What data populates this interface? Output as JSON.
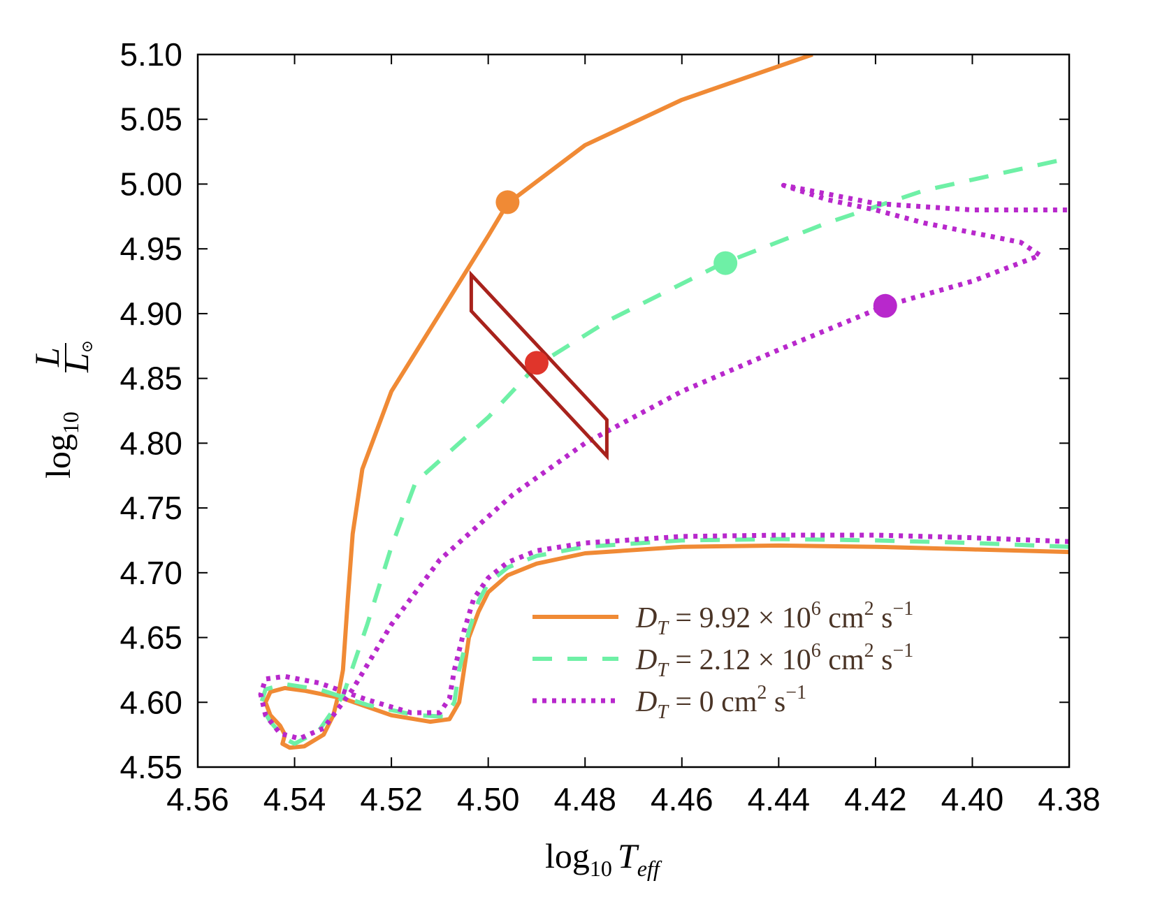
{
  "chart_data": {
    "type": "line",
    "title": "",
    "xlabel": "log10 Teff",
    "ylabel": "log10 L/L⊙",
    "xlim": [
      4.56,
      4.38
    ],
    "ylim": [
      4.55,
      5.1
    ],
    "x_reversed": true,
    "xticks": [
      "4.56",
      "4.54",
      "4.52",
      "4.50",
      "4.48",
      "4.46",
      "4.44",
      "4.42",
      "4.40",
      "4.38"
    ],
    "yticks": [
      "4.55",
      "4.60",
      "4.65",
      "4.70",
      "4.75",
      "4.80",
      "4.85",
      "4.90",
      "4.95",
      "5.00",
      "5.05",
      "5.10"
    ],
    "grid": false,
    "legend_position": "lower-right",
    "series": [
      {
        "name": "D_T = 9.92 × 10^6 cm^2 s^-1",
        "style": "solid",
        "color": "#f08a35",
        "points": [
          [
            4.38,
            4.716
          ],
          [
            4.4,
            4.718
          ],
          [
            4.42,
            4.72
          ],
          [
            4.44,
            4.721
          ],
          [
            4.46,
            4.72
          ],
          [
            4.48,
            4.715
          ],
          [
            4.49,
            4.707
          ],
          [
            4.496,
            4.698
          ],
          [
            4.5,
            4.685
          ],
          [
            4.502,
            4.67
          ],
          [
            4.504,
            4.65
          ],
          [
            4.505,
            4.625
          ],
          [
            4.506,
            4.6
          ],
          [
            4.508,
            4.587
          ],
          [
            4.512,
            4.585
          ],
          [
            4.52,
            4.59
          ],
          [
            4.53,
            4.603
          ],
          [
            4.538,
            4.609
          ],
          [
            4.542,
            4.611
          ],
          [
            4.545,
            4.608
          ],
          [
            4.546,
            4.6
          ],
          [
            4.545,
            4.59
          ],
          [
            4.543,
            4.582
          ],
          [
            4.542,
            4.575
          ],
          [
            4.5425,
            4.568
          ],
          [
            4.541,
            4.565
          ],
          [
            4.538,
            4.566
          ],
          [
            4.534,
            4.575
          ],
          [
            4.532,
            4.59
          ],
          [
            4.531,
            4.605
          ],
          [
            4.53,
            4.625
          ],
          [
            4.529,
            4.68
          ],
          [
            4.528,
            4.73
          ],
          [
            4.526,
            4.78
          ],
          [
            4.52,
            4.84
          ],
          [
            4.51,
            4.9
          ],
          [
            4.5,
            4.96
          ],
          [
            4.496,
            4.985
          ],
          [
            4.48,
            5.03
          ],
          [
            4.46,
            5.065
          ],
          [
            4.433,
            5.1
          ]
        ]
      },
      {
        "name": "D_T = 2.12 × 10^6 cm^2 s^-1",
        "style": "dashed",
        "color": "#6ef0a6",
        "points": [
          [
            4.38,
            4.72
          ],
          [
            4.4,
            4.723
          ],
          [
            4.42,
            4.725
          ],
          [
            4.44,
            4.726
          ],
          [
            4.46,
            4.725
          ],
          [
            4.48,
            4.72
          ],
          [
            4.49,
            4.713
          ],
          [
            4.496,
            4.704
          ],
          [
            4.5,
            4.692
          ],
          [
            4.502,
            4.678
          ],
          [
            4.504,
            4.655
          ],
          [
            4.506,
            4.625
          ],
          [
            4.507,
            4.6
          ],
          [
            4.509,
            4.589
          ],
          [
            4.515,
            4.59
          ],
          [
            4.525,
            4.598
          ],
          [
            4.535,
            4.61
          ],
          [
            4.542,
            4.614
          ],
          [
            4.546,
            4.61
          ],
          [
            4.547,
            4.598
          ],
          [
            4.545,
            4.585
          ],
          [
            4.542,
            4.572
          ],
          [
            4.54,
            4.568
          ],
          [
            4.535,
            4.578
          ],
          [
            4.53,
            4.605
          ],
          [
            4.525,
            4.66
          ],
          [
            4.52,
            4.72
          ],
          [
            4.515,
            4.77
          ],
          [
            4.5,
            4.82
          ],
          [
            4.49,
            4.86
          ],
          [
            4.475,
            4.895
          ],
          [
            4.452,
            4.938
          ],
          [
            4.43,
            4.97
          ],
          [
            4.41,
            4.995
          ],
          [
            4.38,
            5.02
          ]
        ]
      },
      {
        "name": "D_T = 0 cm^2 s^-1",
        "style": "dotted",
        "color": "#b828cc",
        "points": [
          [
            4.38,
            4.724
          ],
          [
            4.4,
            4.727
          ],
          [
            4.42,
            4.729
          ],
          [
            4.44,
            4.729
          ],
          [
            4.46,
            4.728
          ],
          [
            4.48,
            4.723
          ],
          [
            4.49,
            4.717
          ],
          [
            4.496,
            4.708
          ],
          [
            4.5,
            4.696
          ],
          [
            4.503,
            4.68
          ],
          [
            4.505,
            4.655
          ],
          [
            4.507,
            4.625
          ],
          [
            4.508,
            4.603
          ],
          [
            4.51,
            4.592
          ],
          [
            4.516,
            4.592
          ],
          [
            4.525,
            4.602
          ],
          [
            4.535,
            4.615
          ],
          [
            4.542,
            4.62
          ],
          [
            4.546,
            4.618
          ],
          [
            4.547,
            4.606
          ],
          [
            4.546,
            4.59
          ],
          [
            4.543,
            4.576
          ],
          [
            4.539,
            4.572
          ],
          [
            4.534,
            4.58
          ],
          [
            4.528,
            4.61
          ],
          [
            4.52,
            4.66
          ],
          [
            4.51,
            4.71
          ],
          [
            4.495,
            4.76
          ],
          [
            4.48,
            4.8
          ],
          [
            4.46,
            4.84
          ],
          [
            4.44,
            4.872
          ],
          [
            4.418,
            4.906
          ],
          [
            4.4,
            4.925
          ],
          [
            4.386,
            4.945
          ],
          [
            4.39,
            4.955
          ],
          [
            4.41,
            4.97
          ],
          [
            4.42,
            4.98
          ],
          [
            4.43,
            4.988
          ],
          [
            4.439,
            4.999
          ],
          [
            4.42,
            4.985
          ],
          [
            4.4,
            4.98
          ],
          [
            4.38,
            4.98
          ]
        ]
      }
    ],
    "markers": [
      {
        "series": 0,
        "x": 4.496,
        "y": 4.986,
        "color": "#f08a35"
      },
      {
        "series": 1,
        "x": 4.451,
        "y": 4.939,
        "color": "#6ef0a6"
      },
      {
        "series": 2,
        "x": 4.418,
        "y": 4.906,
        "color": "#b828cc"
      },
      {
        "series": "observed",
        "x": 4.49,
        "y": 4.862,
        "color": "#e0352b"
      }
    ],
    "error_box": {
      "color": "#a8221c",
      "vertices": [
        [
          4.5035,
          4.93
        ],
        [
          4.5035,
          4.902
        ],
        [
          4.4755,
          4.79
        ],
        [
          4.4755,
          4.818
        ]
      ]
    }
  },
  "legend": [
    {
      "label": "D",
      "sub": "T",
      "eq": " = 9.92 × 10",
      "exp": "6",
      "unit": " cm",
      "unitexp": "2",
      "unit2": " s",
      "unit2exp": "−1"
    },
    {
      "label": "D",
      "sub": "T",
      "eq": " = 2.12 × 10",
      "exp": "6",
      "unit": " cm",
      "unitexp": "2",
      "unit2": " s",
      "unit2exp": "−1"
    },
    {
      "label": "D",
      "sub": "T",
      "eq": " = 0",
      "exp": "",
      "unit": " cm",
      "unitexp": "2",
      "unit2": " s",
      "unit2exp": "−1"
    }
  ],
  "axis_text": {
    "x_main": "log",
    "x_sub": "10",
    "x_var": "T",
    "x_var_sub": "eff",
    "y_main": "log",
    "y_sub": "10",
    "y_num": "L",
    "y_den": "L",
    "y_den_sub": "⊙"
  }
}
